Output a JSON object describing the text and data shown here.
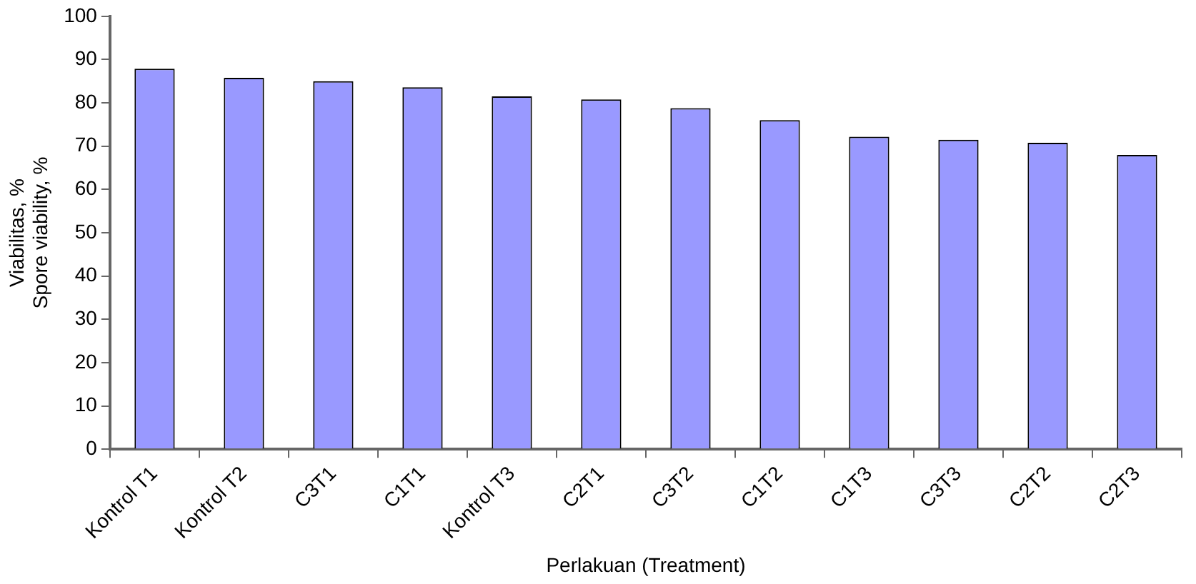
{
  "chart_data": {
    "type": "bar",
    "xlabel": "Perlakuan (Treatment)",
    "ylabel": [
      "Viabilitas, %",
      "Spore viability, %"
    ],
    "categories": [
      "Kontrol T1",
      "Kontrol T2",
      "C3T1",
      "C1T1",
      "Kontrol T3",
      "C2T1",
      "C3T2",
      "C1T2",
      "C1T3",
      "C3T3",
      "C2T2",
      "C2T3"
    ],
    "series": [
      {
        "color": "#9999ff",
        "values": [
          87.9,
          85.8,
          85,
          83.6,
          81.5,
          80.8,
          78.8,
          76,
          72.2,
          71.5,
          70.8,
          68
        ]
      }
    ],
    "ylim": [
      0,
      100
    ],
    "yticks": [
      0,
      10,
      20,
      30,
      40,
      50,
      60,
      70,
      80,
      90,
      100
    ],
    "grid": false,
    "legend": false
  }
}
